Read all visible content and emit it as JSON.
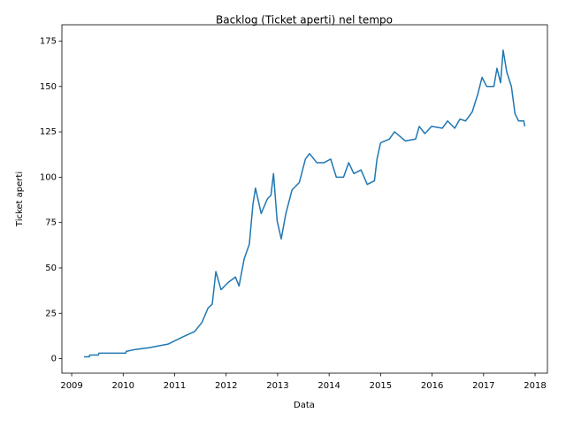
{
  "chart_data": {
    "type": "line",
    "title": "Backlog (Ticket aperti) nel tempo",
    "x_label": "Data",
    "y_label": "Ticket aperti",
    "series": [
      {
        "color": "#1f77b4",
        "x": [
          2009.24,
          2009.34,
          2009.35,
          2009.52,
          2009.53,
          2010.05,
          2010.06,
          2010.22,
          2010.5,
          2010.87,
          2011.16,
          2011.39,
          2011.53,
          2011.65,
          2011.73,
          2011.8,
          2011.9,
          2012.04,
          2012.18,
          2012.25,
          2012.35,
          2012.45,
          2012.52,
          2012.57,
          2012.68,
          2012.8,
          2012.87,
          2012.92,
          2012.99,
          2013.07,
          2013.16,
          2013.28,
          2013.42,
          2013.54,
          2013.62,
          2013.76,
          2013.9,
          2014.03,
          2014.14,
          2014.28,
          2014.38,
          2014.48,
          2014.62,
          2014.74,
          2014.88,
          2014.93,
          2015.0,
          2015.17,
          2015.27,
          2015.48,
          2015.68,
          2015.75,
          2015.86,
          2015.99,
          2016.2,
          2016.3,
          2016.44,
          2016.54,
          2016.65,
          2016.78,
          2016.89,
          2016.97,
          2017.06,
          2017.2,
          2017.26,
          2017.33,
          2017.38,
          2017.45,
          2017.54,
          2017.61,
          2017.68,
          2017.78,
          2017.8
        ],
        "values": [
          1,
          1,
          2,
          2,
          3,
          3,
          4,
          5,
          6,
          8,
          12,
          15,
          20,
          28,
          30,
          48,
          38,
          42,
          45,
          40,
          55,
          63,
          85,
          94,
          80,
          88,
          90,
          102,
          76,
          66,
          80,
          93,
          97,
          110,
          113,
          108,
          108,
          110,
          100,
          100,
          108,
          102,
          104,
          96,
          98,
          110,
          119,
          121,
          125,
          120,
          121,
          128,
          124,
          128,
          127,
          131,
          127,
          132,
          131,
          136,
          146,
          155,
          150,
          150,
          160,
          152,
          170,
          158,
          150,
          135,
          131,
          131,
          128
        ]
      }
    ],
    "xlim": [
      2008.81,
      2018.24
    ],
    "xticks": [
      2009,
      2010,
      2011,
      2012,
      2013,
      2014,
      2015,
      2016,
      2017,
      2018
    ],
    "ylim": [
      -8,
      184
    ],
    "yticks": [
      0,
      25,
      50,
      75,
      100,
      125,
      150,
      175
    ],
    "grid": false
  }
}
